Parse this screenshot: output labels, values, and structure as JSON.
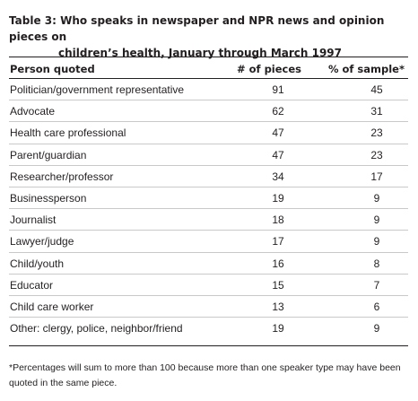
{
  "caption": {
    "label": "Table 3:",
    "title_line1": "Who speaks in newspaper and NPR news and opinion pieces on",
    "title_line2": "children’s health, January through March 1997"
  },
  "table": {
    "headers": [
      "Person quoted",
      "# of pieces",
      "% of sample*"
    ],
    "rows": [
      [
        "Politician/government representative",
        "91",
        "45"
      ],
      [
        "Advocate",
        "62",
        "31"
      ],
      [
        "Health care professional",
        "47",
        "23"
      ],
      [
        "Parent/guardian",
        "47",
        "23"
      ],
      [
        "Researcher/professor",
        "34",
        "17"
      ],
      [
        "Businessperson",
        "19",
        "9"
      ],
      [
        "Journalist",
        "18",
        "9"
      ],
      [
        "Lawyer/judge",
        "17",
        "9"
      ],
      [
        "Child/youth",
        "16",
        "8"
      ],
      [
        "Educator",
        "15",
        "7"
      ],
      [
        "Child care worker",
        "13",
        "6"
      ],
      [
        "Other: clergy, police, neighbor/friend",
        "19",
        "9"
      ]
    ]
  },
  "footnote": {
    "line1": "*Percentages will sum to more than 100 because more than one speaker type may have been",
    "line2": "quoted in the same piece."
  }
}
